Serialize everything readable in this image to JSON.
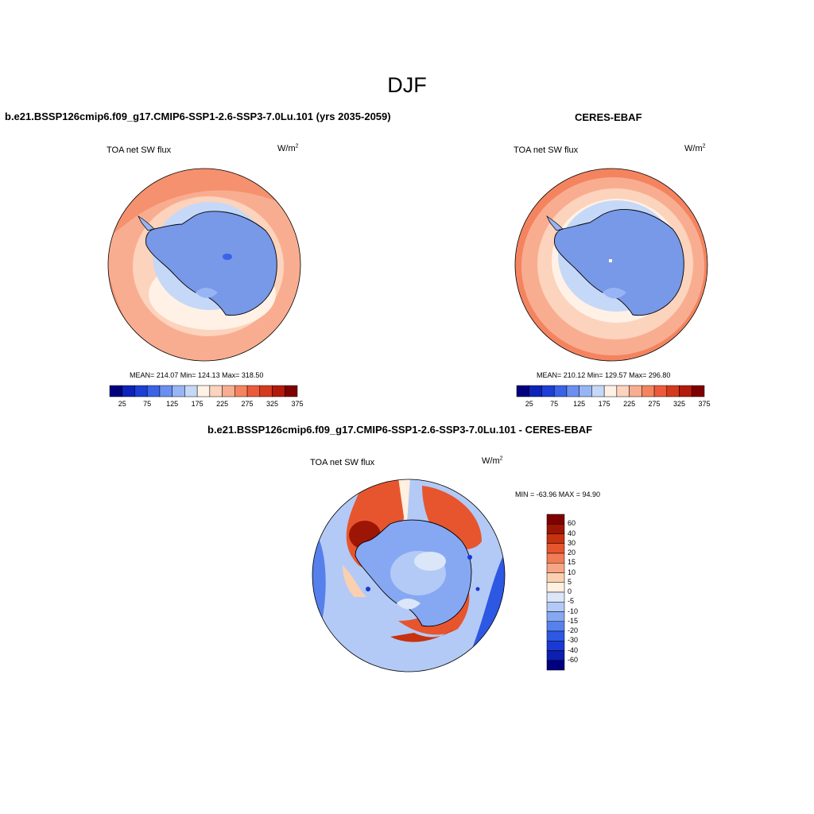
{
  "page": {
    "season_title": "DJF"
  },
  "colors": {
    "abs_palette": [
      "#00007f",
      "#0d22b8",
      "#1c3fd6",
      "#3a63e6",
      "#6b8ff0",
      "#97b4f5",
      "#c6d8f7",
      "#fff1e6",
      "#fcd3bc",
      "#f9ad90",
      "#f4845f",
      "#ec5a3c",
      "#d63a1c",
      "#b21a0c",
      "#7f0000"
    ],
    "diff_palette": [
      "#00007f",
      "#0c1fb0",
      "#1b39d2",
      "#2d58e3",
      "#5680ec",
      "#86a8f3",
      "#b3caf6",
      "#dbe6f9",
      "#fff0e0",
      "#fbd0b0",
      "#f7a685",
      "#f17c56",
      "#e7552e",
      "#c7320f",
      "#9d1505",
      "#7f0000"
    ],
    "land_fill": "#7898e8",
    "land_fill_dark": "#6f90e3"
  },
  "panels": {
    "model": {
      "title": "b.e21.BSSP126cmip6.f09_g17.CMIP6-SSP1-2.6-SSP3-7.0Lu.101 (yrs 2035-2059)",
      "variable": "TOA net SW flux",
      "units_base": "W/m",
      "units_exp": "2",
      "stats": "MEAN= 214.07  Min= 124.13  Max= 318.50",
      "colorbar_labels": [
        "25",
        "75",
        "125",
        "175",
        "225",
        "275",
        "325",
        "375"
      ]
    },
    "obs": {
      "title": "CERES-EBAF",
      "variable": "TOA net SW flux",
      "units_base": "W/m",
      "units_exp": "2",
      "stats": "MEAN= 210.12  Min= 129.57  Max= 296.80",
      "colorbar_labels": [
        "25",
        "75",
        "125",
        "175",
        "225",
        "275",
        "325",
        "375"
      ]
    },
    "diff": {
      "title": "b.e21.BSSP126cmip6.f09_g17.CMIP6-SSP1-2.6-SSP3-7.0Lu.101 - CERES-EBAF",
      "variable": "TOA net SW flux",
      "units_base": "W/m",
      "units_exp": "2",
      "stats": "MIN = -63.96 MAX =  94.90",
      "colorbar_labels": [
        "60",
        "40",
        "30",
        "20",
        "15",
        "10",
        "5",
        "0",
        "-5",
        "-10",
        "-15",
        "-20",
        "-30",
        "-40",
        "-60"
      ]
    }
  }
}
